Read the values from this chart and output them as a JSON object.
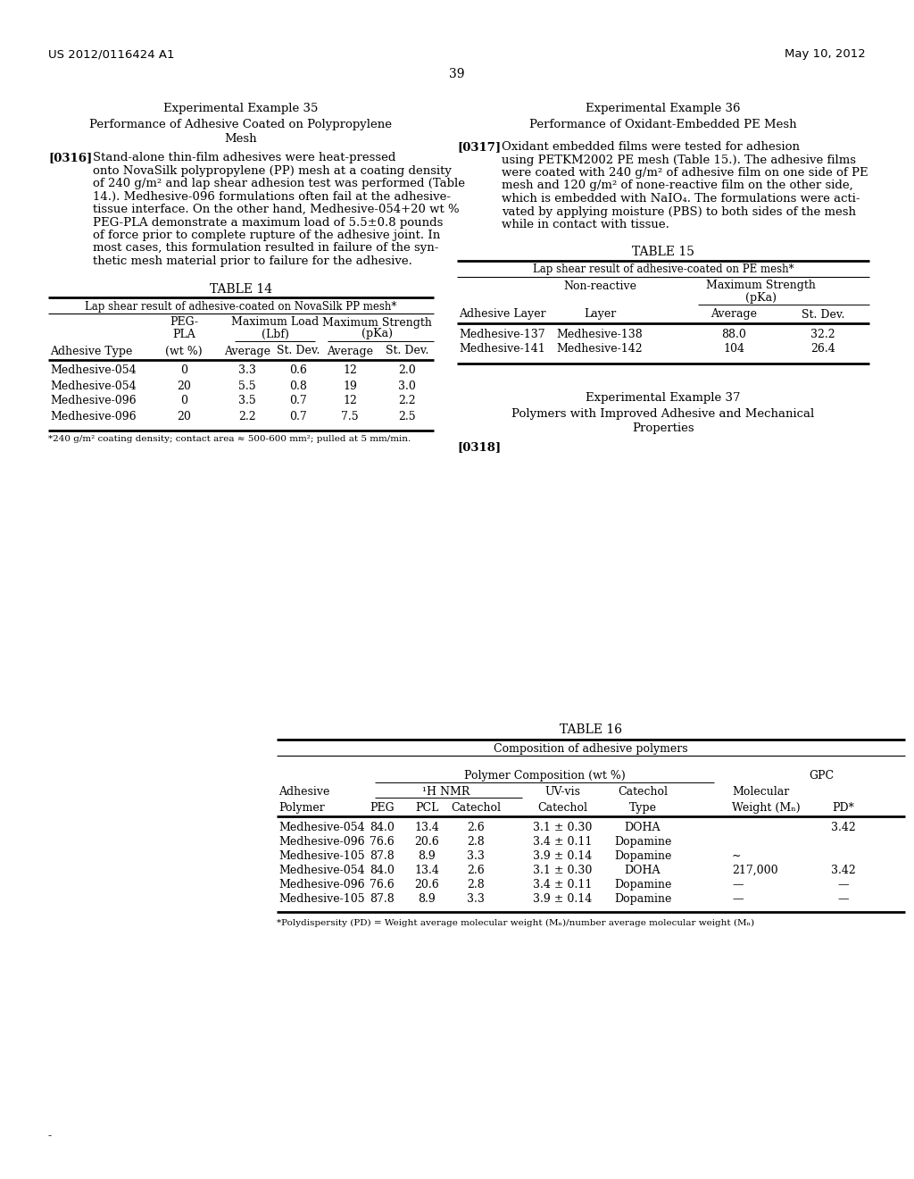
{
  "bg_color": "#ffffff",
  "header_left": "US 2012/0116424 A1",
  "header_right": "May 10, 2012",
  "page_number": "39",
  "left_col": {
    "example_title": "Experimental Example 35",
    "section_title_line1": "Performance of Adhesive Coated on Polypropylene",
    "section_title_line2": "Mesh",
    "para_label": "[0316]",
    "para_lines": [
      "Stand-alone thin-film adhesives were heat-pressed",
      "onto NovaSilk polypropylene (PP) mesh at a coating density",
      "of 240 g/m² and lap shear adhesion test was performed (Table",
      "14.). Medhesive-096 formulations often fail at the adhesive-",
      "tissue interface. On the other hand, Medhesive-054+20 wt %",
      "PEG-PLA demonstrate a maximum load of 5.5±0.8 pounds",
      "of force prior to complete rupture of the adhesive joint. In",
      "most cases, this formulation resulted in failure of the syn-",
      "thetic mesh material prior to failure for the adhesive."
    ],
    "table_title": "TABLE 14",
    "table_subtitle": "Lap shear result of adhesive-coated on NovaSilk PP mesh*",
    "table_rows": [
      [
        "Medhesive-054",
        "0",
        "3.3",
        "0.6",
        "12",
        "2.0"
      ],
      [
        "Medhesive-054",
        "20",
        "5.5",
        "0.8",
        "19",
        "3.0"
      ],
      [
        "Medhesive-096",
        "0",
        "3.5",
        "0.7",
        "12",
        "2.2"
      ],
      [
        "Medhesive-096",
        "20",
        "2.2",
        "0.7",
        "7.5",
        "2.5"
      ]
    ],
    "table_footnote": "*240 g/m² coating density; contact area ≈ 500-600 mm²; pulled at 5 mm/min."
  },
  "right_col": {
    "example_title": "Experimental Example 36",
    "section_title": "Performance of Oxidant-Embedded PE Mesh",
    "para_label": "[0317]",
    "para_lines": [
      "Oxidant embedded films were tested for adhesion",
      "using PETKM2002 PE mesh (Table 15.). The adhesive films",
      "were coated with 240 g/m² of adhesive film on one side of PE",
      "mesh and 120 g/m² of none-reactive film on the other side,",
      "which is embedded with NaIO₄. The formulations were acti-",
      "vated by applying moisture (PBS) to both sides of the mesh",
      "while in contact with tissue."
    ],
    "table_title": "TABLE 15",
    "table_subtitle": "Lap shear result of adhesive-coated on PE mesh*",
    "table_rows": [
      [
        "Medhesive-137",
        "Medhesive-138",
        "88.0",
        "32.2"
      ],
      [
        "Medhesive-141",
        "Medhesive-142",
        "104",
        "26.4"
      ]
    ],
    "example37_title": "Experimental Example 37",
    "section37_line1": "Polymers with Improved Adhesive and Mechanical",
    "section37_line2": "Properties",
    "para318_label": "[0318]"
  },
  "bottom": {
    "table_title": "TABLE 16",
    "table_subtitle": "Composition of adhesive polymers",
    "sub_header1": "Polymer Composition (wt %)",
    "sub_header2": "GPC",
    "table_rows": [
      [
        "Medhesive-054",
        "84.0",
        "13.4",
        "2.6",
        "3.1 ± 0.30",
        "DOHA",
        "",
        "3.42"
      ],
      [
        "Medhesive-096",
        "76.6",
        "20.6",
        "2.8",
        "3.4 ± 0.11",
        "Dopamine",
        "",
        ""
      ],
      [
        "Medhesive-105",
        "87.8",
        "8.9",
        "3.3",
        "3.9 ± 0.14",
        "Dopamine",
        "∼",
        ""
      ],
      [
        "Medhesive-054",
        "84.0",
        "13.4",
        "2.6",
        "3.1 ± 0.30",
        "DOHA",
        "217,000",
        "3.42"
      ],
      [
        "Medhesive-096",
        "76.6",
        "20.6",
        "2.8",
        "3.4 ± 0.11",
        "Dopamine",
        "—",
        "—"
      ],
      [
        "Medhesive-105",
        "87.8",
        "8.9",
        "3.3",
        "3.9 ± 0.14",
        "Dopamine",
        "—",
        "—"
      ]
    ],
    "footnote": "*Polydispersity (PD) = Weight average molecular weight (Mₙ)/number average molecular weight (Mₙ)"
  },
  "bottom_dash": "-"
}
